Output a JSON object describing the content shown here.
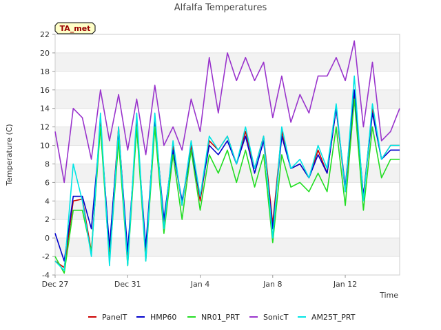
{
  "chart_data": {
    "type": "line",
    "title": "Alfalfa Temperatures",
    "xlabel": "Time",
    "ylabel": "Temperature (C)",
    "badge": "TA_met",
    "ylim": [
      -4,
      22
    ],
    "yticks": [
      -4,
      -2,
      0,
      2,
      4,
      6,
      8,
      10,
      12,
      14,
      16,
      18,
      20,
      22
    ],
    "xlim": [
      "2023-12-27",
      "2024-01-15"
    ],
    "xticks": [
      {
        "date": "2023-12-27",
        "label": "Dec 27"
      },
      {
        "date": "2023-12-31",
        "label": "Dec 31"
      },
      {
        "date": "2024-01-04",
        "label": "Jan 4"
      },
      {
        "date": "2024-01-08",
        "label": "Jan 8"
      },
      {
        "date": "2024-01-12",
        "label": "Jan 12"
      }
    ],
    "grid": "horizontal bands",
    "legend_position": "bottom",
    "x": [
      "2023-12-27 00:00",
      "2023-12-27 12:00",
      "2023-12-28 00:00",
      "2023-12-28 12:00",
      "2023-12-29 00:00",
      "2023-12-29 12:00",
      "2023-12-30 00:00",
      "2023-12-30 12:00",
      "2023-12-31 00:00",
      "2023-12-31 12:00",
      "2024-01-01 00:00",
      "2024-01-01 12:00",
      "2024-01-02 00:00",
      "2024-01-02 12:00",
      "2024-01-03 00:00",
      "2024-01-03 12:00",
      "2024-01-04 00:00",
      "2024-01-04 12:00",
      "2024-01-05 00:00",
      "2024-01-05 12:00",
      "2024-01-06 00:00",
      "2024-01-06 12:00",
      "2024-01-07 00:00",
      "2024-01-07 12:00",
      "2024-01-08 00:00",
      "2024-01-08 12:00",
      "2024-01-09 00:00",
      "2024-01-09 12:00",
      "2024-01-10 00:00",
      "2024-01-10 12:00",
      "2024-01-11 00:00",
      "2024-01-11 12:00",
      "2024-01-12 00:00",
      "2024-01-12 12:00",
      "2024-01-13 00:00",
      "2024-01-13 12:00",
      "2024-01-14 00:00",
      "2024-01-14 12:00",
      "2024-01-15 00:00"
    ],
    "series": [
      {
        "name": "PanelT",
        "color": "#cc0000",
        "values": [
          -2.5,
          -3.2,
          4.0,
          4.2,
          -1.5,
          12.5,
          -1.5,
          12.0,
          -2.5,
          12.5,
          -2.0,
          13.0,
          1.5,
          10.0,
          3.5,
          10.0,
          4.0,
          10.5,
          9.5,
          11.0,
          8.0,
          11.5,
          7.5,
          11.0,
          1.5,
          11.5,
          7.5,
          8.0,
          6.5,
          9.5,
          7.0,
          14.0,
          5.0,
          15.5,
          4.5,
          14.0,
          8.5,
          10.0,
          10.0
        ]
      },
      {
        "name": "HMP60",
        "color": "#0000cc",
        "values": [
          0.5,
          -2.5,
          4.5,
          4.5,
          1.0,
          12.0,
          -1.0,
          11.5,
          -1.5,
          12.0,
          -1.0,
          12.5,
          2.0,
          9.5,
          4.0,
          9.5,
          4.5,
          10.0,
          9.0,
          10.5,
          8.0,
          11.0,
          7.0,
          10.5,
          1.0,
          11.0,
          7.5,
          8.0,
          6.5,
          9.0,
          7.0,
          14.0,
          5.5,
          16.0,
          4.5,
          13.5,
          8.5,
          9.5,
          9.5
        ]
      },
      {
        "name": "NR01_PRT",
        "color": "#22dd22",
        "values": [
          -2.0,
          -3.8,
          3.0,
          3.0,
          -1.5,
          12.0,
          -2.5,
          10.5,
          -3.0,
          12.0,
          -2.5,
          12.0,
          0.5,
          9.0,
          2.0,
          9.5,
          3.0,
          9.0,
          7.0,
          9.5,
          6.0,
          9.5,
          5.5,
          9.0,
          -0.5,
          9.0,
          5.5,
          6.0,
          5.0,
          7.0,
          5.0,
          12.0,
          3.5,
          15.0,
          3.0,
          12.0,
          6.5,
          8.5,
          8.5
        ]
      },
      {
        "name": "SonicT",
        "color": "#9933cc",
        "values": [
          11.5,
          6.0,
          14.0,
          13.0,
          8.5,
          16.0,
          10.5,
          15.5,
          9.5,
          15.0,
          9.0,
          16.5,
          10.0,
          12.0,
          9.5,
          15.0,
          11.5,
          19.5,
          13.5,
          20.0,
          17.0,
          19.5,
          17.0,
          19.0,
          13.0,
          17.5,
          12.5,
          15.5,
          13.5,
          17.5,
          17.5,
          19.5,
          17.0,
          21.3,
          12.0,
          19.0,
          10.5,
          11.5,
          14.0
        ]
      },
      {
        "name": "AM25T_PRT",
        "color": "#00e5e5",
        "values": [
          -2.5,
          -3.5,
          8.0,
          4.0,
          -2.0,
          13.5,
          -3.0,
          12.0,
          -3.0,
          13.5,
          -2.5,
          13.5,
          1.0,
          10.5,
          3.5,
          10.5,
          4.5,
          11.0,
          9.5,
          11.0,
          8.0,
          12.0,
          7.5,
          11.0,
          0.0,
          12.0,
          7.5,
          8.5,
          6.5,
          10.0,
          7.5,
          14.5,
          5.0,
          17.5,
          4.0,
          14.5,
          8.5,
          10.0,
          10.0
        ]
      }
    ]
  }
}
